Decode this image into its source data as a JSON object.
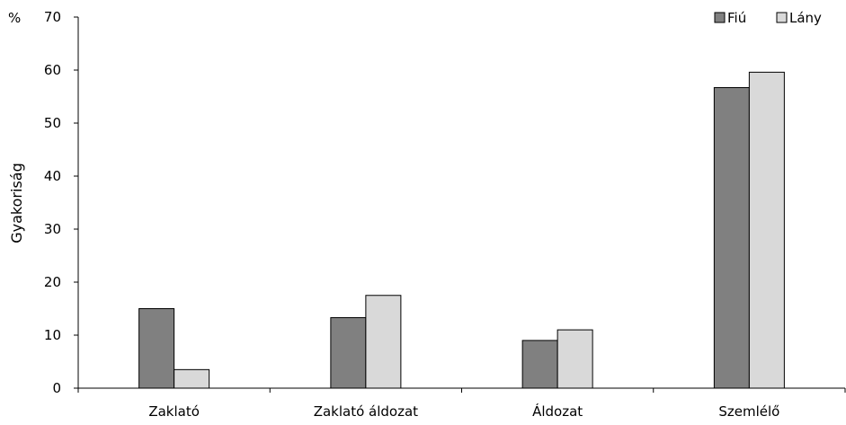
{
  "chart_data": {
    "type": "bar",
    "title": "",
    "xlabel": "",
    "ylabel": "Gyakoriság",
    "yunit": "%",
    "ylim": [
      0,
      70
    ],
    "yticks": [
      0,
      10,
      20,
      30,
      40,
      50,
      60,
      70
    ],
    "grid": false,
    "legend_position": "top-right",
    "categories": [
      "Zaklató",
      "Zaklató áldozat",
      "Áldozat",
      "Szemlélő"
    ],
    "series": [
      {
        "name": "Fiú",
        "color": "#808080",
        "values": [
          15.0,
          13.3,
          9.0,
          56.7
        ]
      },
      {
        "name": "Lány",
        "color": "#d9d9d9",
        "values": [
          3.5,
          17.5,
          11.0,
          59.6
        ]
      }
    ]
  }
}
